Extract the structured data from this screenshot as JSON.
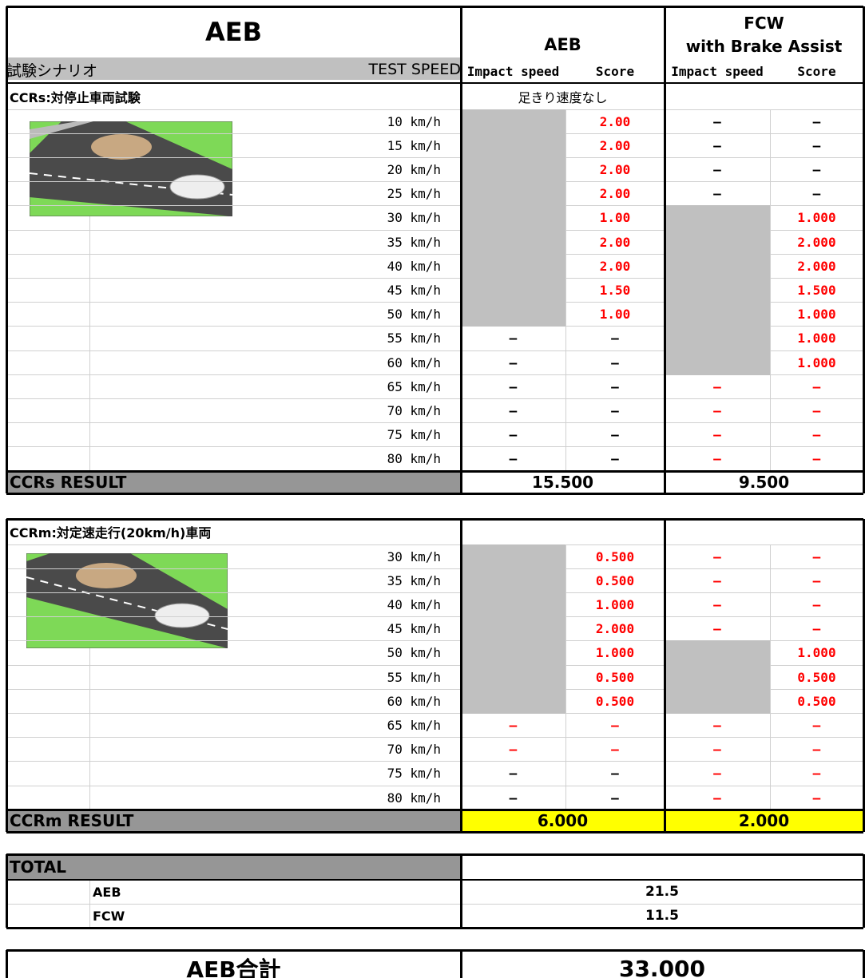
{
  "header": {
    "title": "AEB",
    "aeb": "AEB",
    "fcw_line1": "FCW",
    "fcw_line2": "with Brake Assist"
  },
  "columns": {
    "scenario": "試験シナリオ",
    "test_speed": "TEST SPEED",
    "aeb_impact": "Impact speed",
    "aeb_score": "Score",
    "fcw_impact": "Impact speed",
    "fcw_score": "Score"
  },
  "ccrs": {
    "title": "CCRs:対停止車両試験",
    "note": "足きり速度なし",
    "rows": [
      {
        "speed": "10 km/h",
        "cells": [
          null,
          "2.00",
          "—",
          "—"
        ],
        "colors": [
          null,
          "#ff0000",
          "#000000",
          "#000000"
        ]
      },
      {
        "speed": "15 km/h",
        "cells": [
          null,
          "2.00",
          "—",
          "—"
        ],
        "colors": [
          null,
          "#ff0000",
          "#000000",
          "#000000"
        ]
      },
      {
        "speed": "20 km/h",
        "cells": [
          null,
          "2.00",
          "—",
          "—"
        ],
        "colors": [
          null,
          "#ff0000",
          "#000000",
          "#000000"
        ]
      },
      {
        "speed": "25 km/h",
        "cells": [
          null,
          "2.00",
          "—",
          "—"
        ],
        "colors": [
          null,
          "#ff0000",
          "#000000",
          "#000000"
        ]
      },
      {
        "speed": "30 km/h",
        "cells": [
          null,
          "1.00",
          null,
          "1.000"
        ],
        "colors": [
          null,
          "#ff0000",
          null,
          "#ff0000"
        ]
      },
      {
        "speed": "35 km/h",
        "cells": [
          null,
          "2.00",
          null,
          "2.000"
        ],
        "colors": [
          null,
          "#ff0000",
          null,
          "#ff0000"
        ]
      },
      {
        "speed": "40 km/h",
        "cells": [
          null,
          "2.00",
          null,
          "2.000"
        ],
        "colors": [
          null,
          "#ff0000",
          null,
          "#ff0000"
        ]
      },
      {
        "speed": "45 km/h",
        "cells": [
          null,
          "1.50",
          null,
          "1.500"
        ],
        "colors": [
          null,
          "#ff0000",
          null,
          "#ff0000"
        ]
      },
      {
        "speed": "50 km/h",
        "cells": [
          null,
          "1.00",
          null,
          "1.000"
        ],
        "colors": [
          null,
          "#ff0000",
          null,
          "#ff0000"
        ]
      },
      {
        "speed": "55 km/h",
        "cells": [
          "–",
          "–",
          null,
          "1.000"
        ],
        "colors": [
          "#000000",
          "#000000",
          null,
          "#ff0000"
        ]
      },
      {
        "speed": "60 km/h",
        "cells": [
          "–",
          "–",
          null,
          "1.000"
        ],
        "colors": [
          "#000000",
          "#000000",
          null,
          "#ff0000"
        ]
      },
      {
        "speed": "65 km/h",
        "cells": [
          "–",
          "–",
          "—",
          "—"
        ],
        "colors": [
          "#000000",
          "#000000",
          "#ff0000",
          "#ff0000"
        ]
      },
      {
        "speed": "70 km/h",
        "cells": [
          "–",
          "–",
          "—",
          "—"
        ],
        "colors": [
          "#000000",
          "#000000",
          "#ff0000",
          "#ff0000"
        ]
      },
      {
        "speed": "75 km/h",
        "cells": [
          "–",
          "–",
          "—",
          "—"
        ],
        "colors": [
          "#000000",
          "#000000",
          "#ff0000",
          "#ff0000"
        ]
      },
      {
        "speed": "80 km/h",
        "cells": [
          "–",
          "–",
          "—",
          "—"
        ],
        "colors": [
          "#000000",
          "#000000",
          "#ff0000",
          "#ff0000"
        ]
      }
    ],
    "result_label": "CCRs RESULT",
    "aeb_result": "15.500",
    "fcw_result": "9.500",
    "result_color": "#ffffff"
  },
  "ccrm": {
    "title": "CCRm:対定速走行(20km/h)車両",
    "rows": [
      {
        "speed": "30 km/h",
        "cells": [
          null,
          "0.500",
          "—",
          "—"
        ],
        "colors": [
          null,
          "#ff0000",
          "#ff0000",
          "#ff0000"
        ]
      },
      {
        "speed": "35 km/h",
        "cells": [
          null,
          "0.500",
          "—",
          "—"
        ],
        "colors": [
          null,
          "#ff0000",
          "#ff0000",
          "#ff0000"
        ]
      },
      {
        "speed": "40 km/h",
        "cells": [
          null,
          "1.000",
          "—",
          "—"
        ],
        "colors": [
          null,
          "#ff0000",
          "#ff0000",
          "#ff0000"
        ]
      },
      {
        "speed": "45 km/h",
        "cells": [
          null,
          "2.000",
          "—",
          "—"
        ],
        "colors": [
          null,
          "#ff0000",
          "#ff0000",
          "#ff0000"
        ]
      },
      {
        "speed": "50 km/h",
        "cells": [
          null,
          "1.000",
          null,
          "1.000"
        ],
        "colors": [
          null,
          "#ff0000",
          null,
          "#ff0000"
        ]
      },
      {
        "speed": "55 km/h",
        "cells": [
          null,
          "0.500",
          null,
          "0.500"
        ],
        "colors": [
          null,
          "#ff0000",
          null,
          "#ff0000"
        ]
      },
      {
        "speed": "60 km/h",
        "cells": [
          null,
          "0.500",
          null,
          "0.500"
        ],
        "colors": [
          null,
          "#ff0000",
          null,
          "#ff0000"
        ]
      },
      {
        "speed": "65 km/h",
        "cells": [
          "—",
          "—",
          "—",
          "—"
        ],
        "colors": [
          "#ff0000",
          "#ff0000",
          "#ff0000",
          "#ff0000"
        ]
      },
      {
        "speed": "70 km/h",
        "cells": [
          "—",
          "—",
          "—",
          "—"
        ],
        "colors": [
          "#ff0000",
          "#ff0000",
          "#ff0000",
          "#ff0000"
        ]
      },
      {
        "speed": "75 km/h",
        "cells": [
          "–",
          "–",
          "—",
          "—"
        ],
        "colors": [
          "#000000",
          "#000000",
          "#ff0000",
          "#ff0000"
        ]
      },
      {
        "speed": "80 km/h",
        "cells": [
          "–",
          "–",
          "—",
          "—"
        ],
        "colors": [
          "#000000",
          "#000000",
          "#ff0000",
          "#ff0000"
        ]
      }
    ],
    "result_label": "CCRm RESULT",
    "aeb_result": "6.000",
    "fcw_result": "2.000",
    "result_color": "#ffff00"
  },
  "total": {
    "label": "TOTAL",
    "rows": [
      {
        "name": "AEB",
        "value": "21.5"
      },
      {
        "name": "FCW",
        "value": "11.5"
      }
    ]
  },
  "grand_total": {
    "label": "AEB合計",
    "value": "33.000"
  }
}
